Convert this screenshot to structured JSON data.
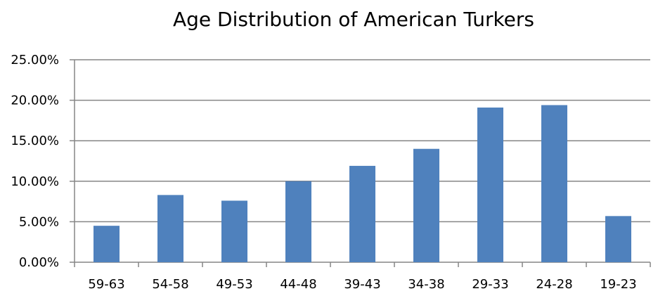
{
  "chart_data": {
    "type": "bar",
    "title": "Age Distribution of American Turkers",
    "xlabel": "",
    "ylabel": "",
    "categories": [
      "59-63",
      "54-58",
      "49-53",
      "44-48",
      "39-43",
      "34-38",
      "29-33",
      "24-28",
      "19-23"
    ],
    "values": [
      4.5,
      8.3,
      7.6,
      10.0,
      11.9,
      14.0,
      19.1,
      19.4,
      5.7
    ],
    "value_unit": "percent",
    "ylim": [
      0,
      25
    ],
    "y_ticks": [
      0,
      5,
      10,
      15,
      20,
      25
    ],
    "y_tick_labels": [
      "0.00%",
      "5.00%",
      "10.00%",
      "15.00%",
      "20.00%",
      "25.00%"
    ],
    "grid": true,
    "legend": "none",
    "colors": {
      "bar": "#4F81BD",
      "gridline": "#868686",
      "axis": "#868686",
      "text": "#000000"
    }
  }
}
